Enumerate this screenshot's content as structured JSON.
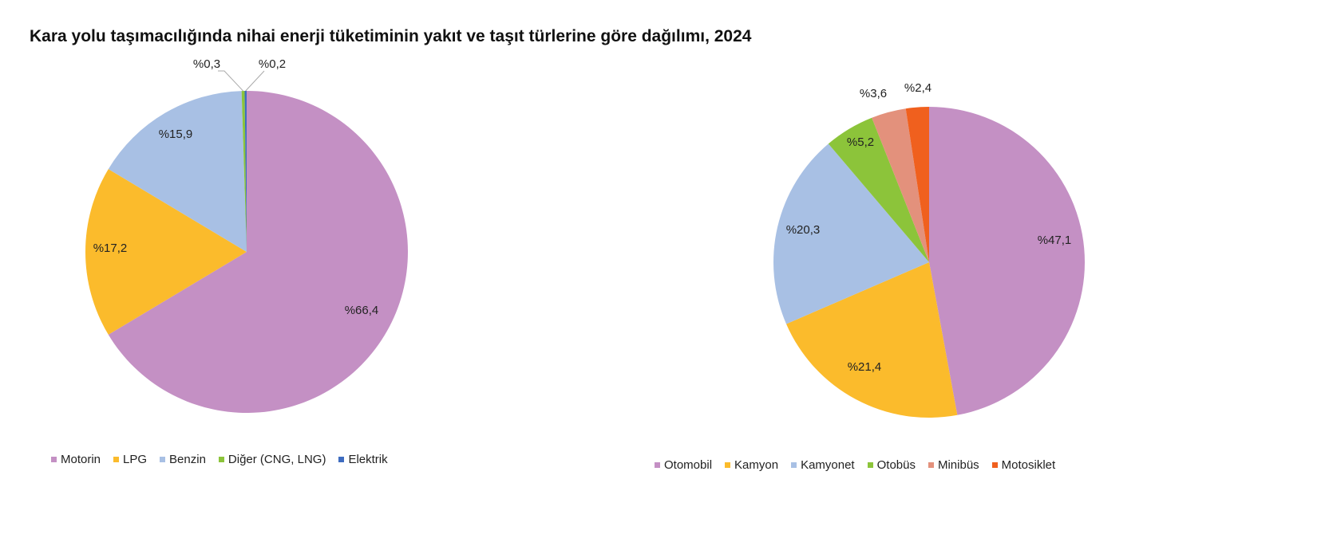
{
  "title": "Kara yolu taşımacılığında nihai enerji tüketiminin yakıt ve taşıt türlerine göre dağılımı, 2024",
  "chart_data": [
    {
      "type": "pie",
      "categories": [
        "Motorin",
        "LPG",
        "Benzin",
        "Diğer (CNG, LNG)",
        "Elektrik"
      ],
      "values": [
        66.4,
        17.2,
        15.9,
        0.3,
        0.2
      ],
      "labels": [
        "%66,4",
        "%17,2",
        "%15,9",
        "%0,3",
        "%0,2"
      ],
      "colors": [
        "#C490C4",
        "#FBBB2C",
        "#A8C0E4",
        "#8CC43A",
        "#3E6CC0"
      ],
      "legend_position": "bottom"
    },
    {
      "type": "pie",
      "categories": [
        "Otomobil",
        "Kamyon",
        "Kamyonet",
        "Otobüs",
        "Minibüs",
        "Motosiklet"
      ],
      "values": [
        47.1,
        21.4,
        20.3,
        5.2,
        3.6,
        2.4
      ],
      "labels": [
        "%47,1",
        "%21,4",
        "%20,3",
        "%5,2",
        "%3,6",
        "%2,4"
      ],
      "colors": [
        "#C490C4",
        "#FBBB2C",
        "#A8C0E4",
        "#8CC43A",
        "#E3917C",
        "#F0601E"
      ],
      "legend_position": "bottom"
    }
  ]
}
